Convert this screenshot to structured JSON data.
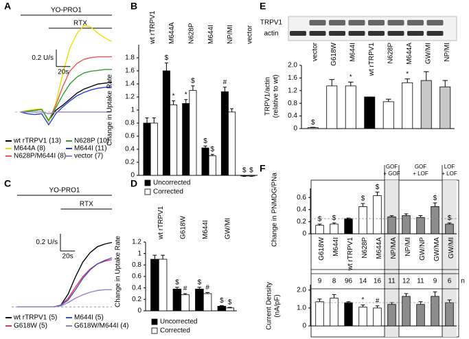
{
  "chart_data": [
    {
      "type": "line",
      "panel": "A",
      "x": [
        0,
        10,
        20,
        30,
        40,
        50,
        60,
        70,
        80,
        90,
        100,
        110,
        120,
        130
      ],
      "xlim": [
        0,
        130
      ],
      "ylim": [
        -0.3,
        1.1
      ],
      "annotations": [
        {
          "text": "YO-PRO1",
          "x": [
            0,
            130
          ]
        },
        {
          "text": "RTX",
          "x": [
            40,
            130
          ]
        }
      ],
      "scale_bar": {
        "y": {
          "value": 0.2,
          "label": "0.2 U/s"
        },
        "x": {
          "value": 20,
          "label": "20s"
        }
      },
      "series": [
        {
          "name": "wt rTRPV1 (13)",
          "color": "#000000",
          "values": [
            0,
            0.01,
            0.02,
            0.03,
            -0.1,
            0.02,
            0.08,
            0.15,
            0.22,
            0.27,
            0.3,
            0.33,
            0.34,
            0.35
          ]
        },
        {
          "name": "M644A (8)",
          "color": "#f0e000",
          "values": [
            0,
            0.02,
            0.03,
            0.04,
            -0.12,
            0.1,
            0.45,
            0.75,
            0.92,
            1.02,
            1.0,
            0.93,
            0.87,
            0.83
          ]
        },
        {
          "name": "N628P/M644I (8)",
          "color": "#e8584f",
          "values": [
            0,
            0.01,
            0.02,
            0.03,
            -0.1,
            0.08,
            0.3,
            0.48,
            0.57,
            0.62,
            0.64,
            0.65,
            0.65,
            0.65
          ]
        },
        {
          "name": "N628P (10)",
          "color": "#2ca02c",
          "values": [
            0,
            0.01,
            0.02,
            0.03,
            -0.1,
            0.05,
            0.2,
            0.33,
            0.41,
            0.46,
            0.48,
            0.49,
            0.5,
            0.5
          ]
        },
        {
          "name": "M644I (11)",
          "color": "#1f3fd6",
          "values": [
            0,
            -0.02,
            -0.03,
            -0.02,
            -0.15,
            -0.02,
            0.06,
            0.13,
            0.19,
            0.23,
            0.26,
            0.28,
            0.29,
            0.3
          ]
        },
        {
          "name": "vector (7)",
          "color": "#9b7fcf",
          "values": [
            0,
            0,
            0,
            0,
            -0.02,
            0,
            0,
            0,
            0,
            0,
            0,
            0,
            0,
            0
          ]
        }
      ]
    },
    {
      "type": "bar",
      "panel": "B",
      "ylabel": "Change in Uptake Rate",
      "categories": [
        "wt rTRPV1",
        "M644A",
        "N628P",
        "M644I",
        "NP/MI",
        "vector"
      ],
      "ylim": [
        0,
        2.0
      ],
      "yticks": [
        0,
        0.2,
        0.4,
        0.6,
        0.8,
        1,
        1.2,
        1.4,
        1.6,
        1.8
      ],
      "series": [
        {
          "name": "Uncorrected",
          "color": "#000000",
          "values": [
            0.8,
            1.6,
            1.1,
            0.42,
            1.28,
            -0.01
          ],
          "errors": [
            0.08,
            0.12,
            0.06,
            0.03,
            0.07,
            0.005
          ],
          "markers": [
            null,
            "$",
            "*",
            "$",
            "#",
            "$"
          ]
        },
        {
          "name": "Corrected",
          "color": "#ffffff",
          "values": [
            0.8,
            1.08,
            1.3,
            0.3,
            0.97,
            -0.01
          ],
          "errors": [
            0.08,
            0.06,
            0.07,
            0.02,
            0.05,
            0.005
          ],
          "markers": [
            null,
            "*",
            "$",
            "$",
            null,
            "$"
          ]
        }
      ]
    },
    {
      "type": "line",
      "panel": "C",
      "x": [
        0,
        10,
        20,
        30,
        40,
        50,
        60,
        70,
        80,
        90,
        100,
        110,
        120,
        130
      ],
      "xlim": [
        0,
        130
      ],
      "ylim": [
        -0.07,
        0.93
      ],
      "annotations": [
        {
          "text": "YO-PRO1",
          "x": [
            0,
            130
          ]
        },
        {
          "text": "RTX",
          "x": [
            60,
            130
          ]
        }
      ],
      "scale_bar": {
        "y": {
          "value": 0.2,
          "label": "0.2 U/s"
        },
        "x": {
          "value": 20,
          "label": "20s"
        }
      },
      "series": [
        {
          "name": "wt rTRPV1 (5)",
          "color": "#000000",
          "values": [
            0,
            0,
            0,
            0,
            0,
            0,
            0.02,
            0.15,
            0.35,
            0.52,
            0.63,
            0.7,
            0.73,
            0.75
          ]
        },
        {
          "name": "G618W (5)",
          "color": "#e8334a",
          "values": [
            0,
            0,
            0,
            0,
            0,
            0,
            0.02,
            0.1,
            0.23,
            0.35,
            0.44,
            0.5,
            0.53,
            0.55
          ]
        },
        {
          "name": "M644I (5)",
          "color": "#3552d0",
          "values": [
            0,
            0,
            0,
            0,
            0,
            0,
            0.02,
            0.08,
            0.2,
            0.33,
            0.43,
            0.5,
            0.54,
            0.57
          ]
        },
        {
          "name": "G618W/M644I (4)",
          "color": "#9b7fcf",
          "values": [
            0,
            0,
            0,
            0,
            0,
            0,
            0.01,
            0.05,
            0.1,
            0.14,
            0.17,
            0.19,
            0.2,
            0.2
          ]
        }
      ]
    },
    {
      "type": "bar",
      "panel": "D",
      "ylabel": "Change in Uptake Rate",
      "categories": [
        "wt rTRPV1",
        "G618W",
        "M644I",
        "GW/MI"
      ],
      "ylim": [
        0,
        1.2
      ],
      "yticks": [
        0,
        0.2,
        0.4,
        0.6,
        0.8,
        1,
        1.2
      ],
      "series": [
        {
          "name": "Uncorrected",
          "color": "#000000",
          "values": [
            0.9,
            0.38,
            0.38,
            0.08
          ],
          "errors": [
            0.07,
            0.03,
            0.03,
            0.01
          ],
          "markers": [
            null,
            "$",
            "$",
            "$"
          ]
        },
        {
          "name": "Corrected",
          "color": "#ffffff",
          "values": [
            0.9,
            0.28,
            0.3,
            0.05
          ],
          "errors": [
            0.07,
            0.02,
            0.02,
            0.01
          ],
          "markers": [
            null,
            "#",
            "#",
            "$"
          ]
        }
      ]
    },
    {
      "type": "bar",
      "panel": "E",
      "blot_labels": [
        "TRPV1",
        "actin"
      ],
      "ylabel": [
        "TRPV1/actin",
        "(relative to wt)"
      ],
      "categories": [
        "vector",
        "G618W",
        "M644I",
        "wt rTRPV1",
        "N628P",
        "M644A",
        "GW/MI",
        "NP/MI"
      ],
      "values": [
        0.03,
        1.35,
        1.35,
        1.0,
        0.85,
        1.45,
        1.52,
        1.32
      ],
      "errors": [
        0.01,
        0.2,
        0.12,
        0,
        0.08,
        0.12,
        0.28,
        0.2
      ],
      "markers": [
        "$",
        null,
        "*",
        null,
        null,
        "*",
        null,
        null
      ],
      "colors": [
        "#ffffff",
        "#ffffff",
        "#ffffff",
        "#000000",
        "#ffffff",
        "#ffffff",
        "#c8c8c8",
        "#c8c8c8"
      ],
      "ylim": [
        0,
        2.0
      ],
      "yticks": [
        0,
        0.4,
        0.8,
        1.2,
        1.6,
        {
          "value": 2,
          "label": "2.0"
        }
      ]
    },
    {
      "type": "bar",
      "panel": "F",
      "ylabel": [
        "Change in PNMDG/PNa"
      ],
      "group_labels": [
        [
          "GOF",
          "+ GOF"
        ],
        [
          "GOF",
          "+ LOF"
        ],
        [
          "LOF",
          "+ LOF"
        ]
      ],
      "categories": [
        "G618W",
        "M644I",
        "wt rTRPV1",
        "N628P",
        "M644A",
        "NP/MA",
        "NP/MI",
        "GW/NP",
        "GW/MA",
        "GW/MI"
      ],
      "values": [
        0.14,
        0.16,
        0.25,
        0.45,
        0.63,
        0.28,
        0.3,
        0.27,
        0.45,
        0.16
      ],
      "errors": [
        0.02,
        0.02,
        0.01,
        0.05,
        0.06,
        0.02,
        0.03,
        0.03,
        0.06,
        0.02
      ],
      "markers": [
        "$",
        "$",
        null,
        "$",
        "$",
        null,
        null,
        null,
        "$",
        "$"
      ],
      "colors": [
        "#ffffff",
        "#ffffff",
        "#000000",
        "#ffffff",
        "#ffffff",
        "#8c8c8c",
        "#8c8c8c",
        "#8c8c8c",
        "#8c8c8c",
        "#8c8c8c"
      ],
      "n_label": "n",
      "n_values": [
        9,
        8,
        96,
        14,
        16,
        11,
        12,
        11,
        9,
        6
      ],
      "ylim": [
        0,
        0.75
      ],
      "yticks": [
        0,
        0.2,
        0.4,
        0.6
      ]
    },
    {
      "type": "bar",
      "ylabel": [
        "Current Density",
        "(nA/pF)"
      ],
      "values": [
        1.35,
        1.55,
        1.3,
        1.05,
        1.0,
        1.2,
        1.65,
        1.2,
        1.65,
        1.3
      ],
      "errors": [
        0.15,
        0.2,
        0.05,
        0.12,
        0.12,
        0.1,
        0.15,
        0.15,
        0.25,
        0.15
      ],
      "markers": [
        null,
        null,
        null,
        "*",
        "#",
        null,
        null,
        null,
        null,
        null
      ],
      "colors": [
        "#ffffff",
        "#ffffff",
        "#000000",
        "#ffffff",
        "#ffffff",
        "#8c8c8c",
        "#8c8c8c",
        "#8c8c8c",
        "#8c8c8c",
        "#8c8c8c"
      ],
      "ylim": [
        0,
        2.3
      ],
      "yticks": [
        0,
        {
          "value": 1,
          "label": "1.0"
        },
        {
          "value": 2,
          "label": "2.0"
        }
      ]
    }
  ]
}
